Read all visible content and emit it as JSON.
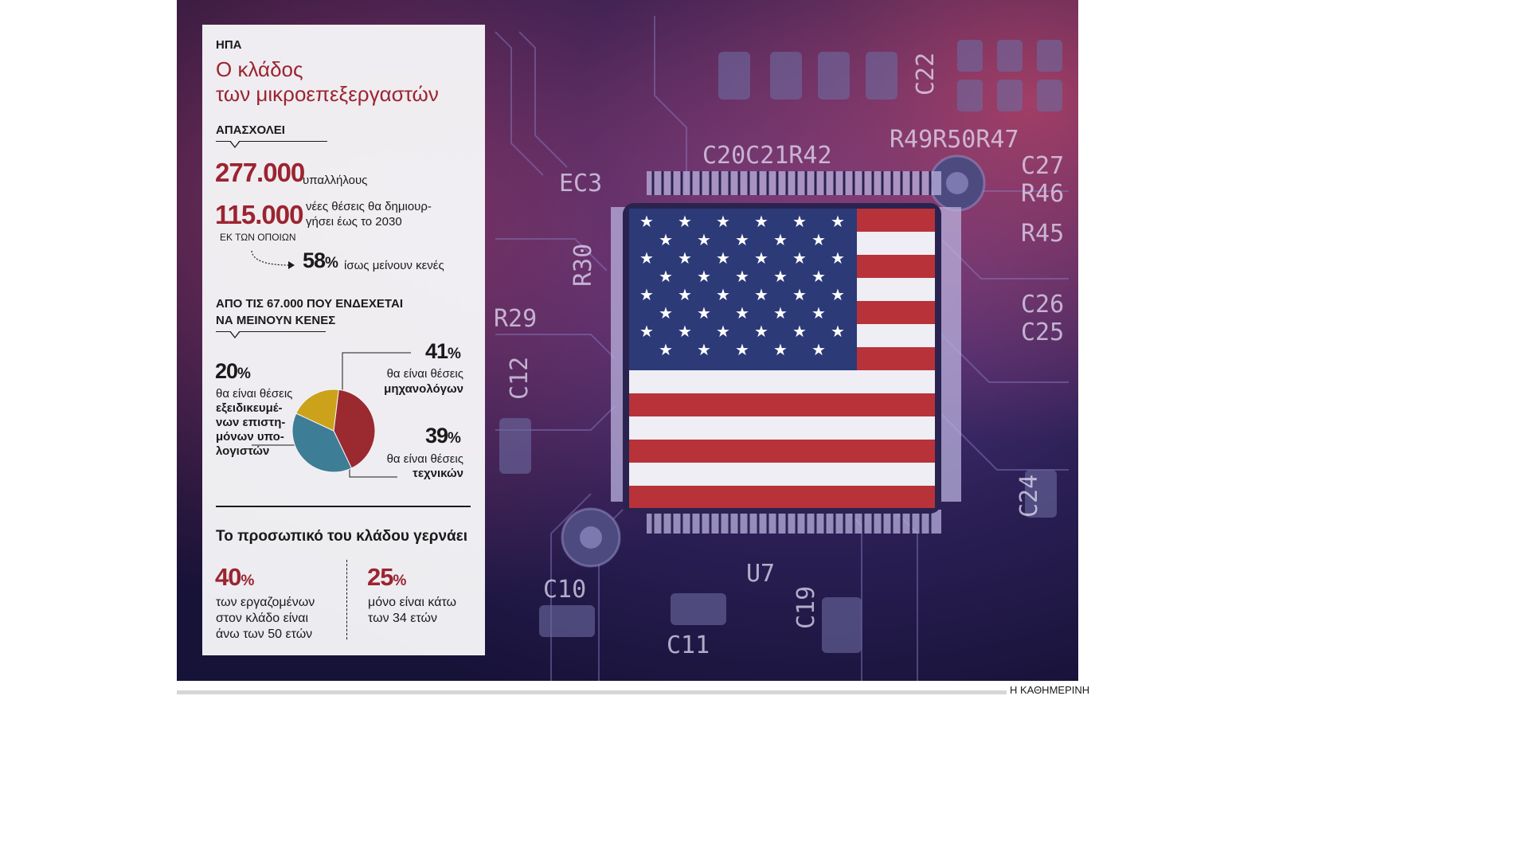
{
  "header": {
    "kicker": "ΗΠΑ",
    "title_line1": "Ο κλάδος",
    "title_line2": "των μικροεπεξεργαστών"
  },
  "employment": {
    "section_label": "ΑΠΑΣΧΟΛΕΙ",
    "employees_value": "277.000",
    "employees_unit": "υπαλλήλους",
    "new_jobs_value": "115.000",
    "new_jobs_text_line1": "νέες θέσεις θα δημιουρ-",
    "new_jobs_text_line2": "γήσει έως το 2030",
    "of_which": "ΕΚ ΤΩΝ ΟΠΟΙΩΝ",
    "unfilled_value": "58",
    "unfilled_text": "ίσως μείνουν κενές"
  },
  "breakdown": {
    "section_line1": "ΑΠΟ ΤΙΣ 67.000 ΠΟΥ ΕΝΔΕΧΕΤΑΙ",
    "section_line2": "ΝΑ ΜΕΙΝΟΥΝ ΚΕΝΕΣ",
    "engineers": {
      "value": "41",
      "line1": "θα είναι θέσεις",
      "line2": "μηχανολόγων"
    },
    "computer_scientists": {
      "value": "20",
      "line1": "θα είναι θέσεις",
      "line2": "εξειδικευμέ-",
      "line3": "νων επιστη-",
      "line4": "μόνων υπο-",
      "line5": "λογιστών"
    },
    "technicians": {
      "value": "39",
      "line1": "θα είναι θέσεις",
      "line2": "τεχνικών"
    },
    "percent_sign": "%"
  },
  "chart_data": {
    "type": "pie",
    "slices": [
      {
        "label": "μηχανολόγων",
        "value": 41,
        "color": "#9b2a30"
      },
      {
        "label": "τεχνικών",
        "value": 39,
        "color": "#3e7d96"
      },
      {
        "label": "εξειδικευμένων επιστημόνων υπολογιστών",
        "value": 20,
        "color": "#cba21a"
      }
    ]
  },
  "ageing": {
    "section_label": "Το προσωπικό του κλάδου γερνάει",
    "left_value": "40",
    "left_line1": "των εργαζομένων",
    "left_line2": "στον κλάδο είναι",
    "left_line3": "άνω των 50 ετών",
    "right_value": "25",
    "right_line1": "μόνο είναι κάτω",
    "right_line2": "των 34 ετών"
  },
  "footer": {
    "credit": "Η ΚΑΘΗΜΕΡΙΝΗ"
  },
  "photo": {
    "board_labels": [
      "R49R50R47",
      "C27",
      "R46",
      "R45",
      "C26",
      "C25",
      "R29",
      "C12",
      "C10",
      "C11",
      "C19",
      "U7",
      "C24",
      "EC3",
      "C20C21R42",
      "R30",
      "C22"
    ],
    "colors": {
      "accent_red": "#9b2430",
      "flag_red": "#b8323a",
      "flag_blue": "#2c3a78"
    }
  }
}
